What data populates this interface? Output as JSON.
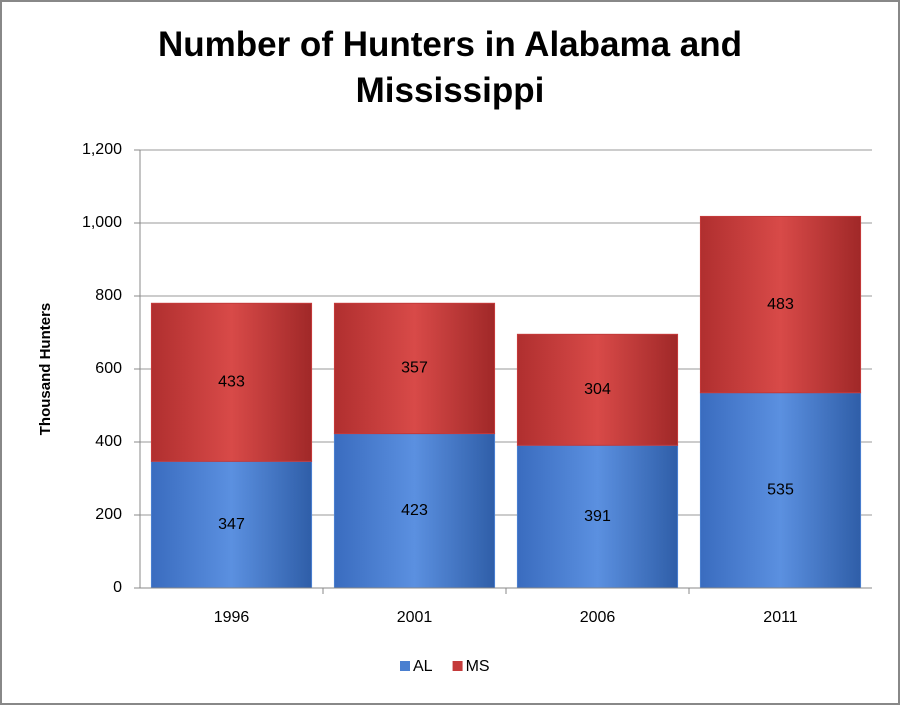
{
  "chart_data": {
    "type": "stacked_bar",
    "title": "Number of Hunters in Alabama and Mississippi",
    "y_label": "Thousand Hunters",
    "categories": [
      "1996",
      "2001",
      "2006",
      "2011"
    ],
    "series": [
      {
        "name": "AL",
        "color": "#4a7fd0",
        "values": [
          347,
          423,
          391,
          535
        ]
      },
      {
        "name": "MS",
        "color": "#c43a3a",
        "values": [
          433,
          357,
          304,
          483
        ]
      }
    ],
    "ylim": [
      0,
      1200
    ],
    "yticks": [
      0,
      200,
      400,
      600,
      800,
      {
        "value": 1000,
        "label": "1,000"
      },
      {
        "value": 1200,
        "label": "1,200"
      }
    ],
    "grid": true,
    "legend": "bottom"
  }
}
